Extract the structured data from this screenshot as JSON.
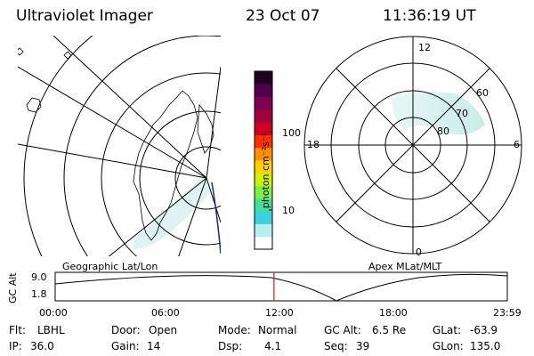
{
  "header": {
    "instrument": "Ultraviolet Imager",
    "date": "23 Oct 07",
    "time": "11:36:19 UT"
  },
  "geo_panel": {
    "label": "Geographic Lat/Lon"
  },
  "apex_panel": {
    "label": "Apex MLat/MLT",
    "mlt_labels": {
      "top": "12",
      "left": "18",
      "right": "6",
      "bottom": "0"
    },
    "lat_labels": [
      "60",
      "70",
      "80"
    ]
  },
  "colorbar": {
    "label": "photon cm⁻²s⁻¹",
    "tick_100": "100",
    "tick_10": "10",
    "colors": [
      "#ffffff",
      "#b4f0f0",
      "#3cd0e0",
      "#40e0a0",
      "#80f040",
      "#d0f000",
      "#ffd000",
      "#ff9000",
      "#ff3000",
      "#d00020",
      "#a00040",
      "#800050",
      "#500050",
      "#200020"
    ]
  },
  "timeline": {
    "ylabel": "GC Alt",
    "ymax": "9.0",
    "ymin": "1.8",
    "ticks": [
      "00:00",
      "06:00",
      "12:00",
      "18:00",
      "23:59"
    ],
    "current_time_fraction": 0.484
  },
  "footer": {
    "filter_label": "Flt:",
    "filter_value": "LBHL",
    "door_label": "Door:",
    "door_value": "Open",
    "mode_label": "Mode:",
    "mode_value": "Normal",
    "gcalt_label": "GC Alt:",
    "gcalt_value": "6.5 Re",
    "glat_label": "GLat:",
    "glat_value": "-63.9",
    "ip_label": "IP:",
    "ip_value": "36.0",
    "gain_label": "Gain:",
    "gain_value": "14",
    "dsp_label": "Dsp:",
    "dsp_value": "4.1",
    "seq_label": "Seq:",
    "seq_value": "39",
    "glon_label": "GLon:",
    "glon_value": "135.0"
  }
}
